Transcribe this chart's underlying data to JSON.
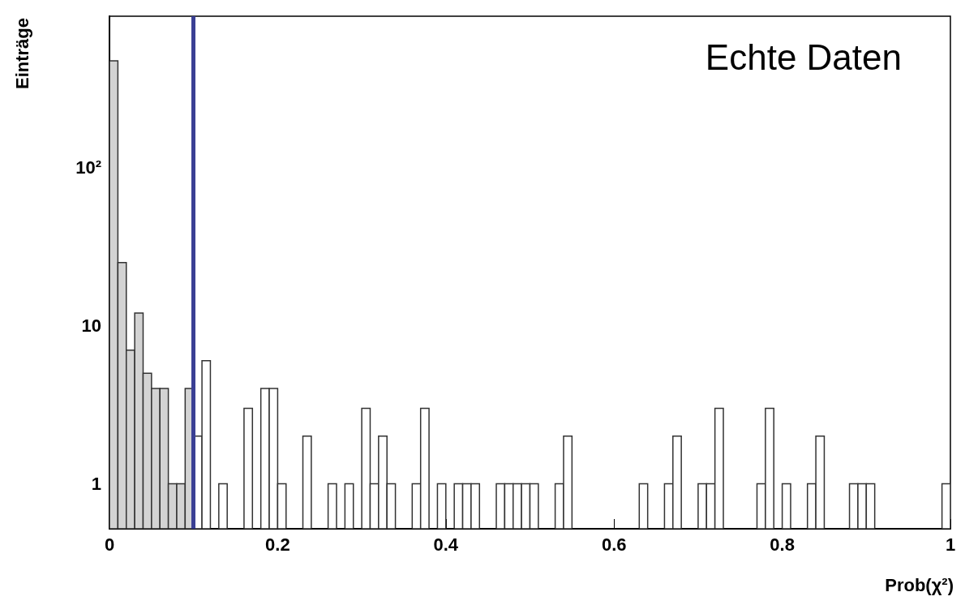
{
  "chart_data": {
    "type": "histogram",
    "xlabel": "Prob(χ²)",
    "ylabel": "Einträge",
    "annotations": [
      "Echte Daten"
    ],
    "bins": [
      0,
      0.01,
      0.02,
      0.03,
      0.04,
      0.05,
      0.06,
      0.07,
      0.08,
      0.09,
      0.1,
      0.11,
      0.12,
      0.13,
      0.14,
      0.15,
      0.16,
      0.17,
      0.18,
      0.19,
      0.2,
      0.21,
      0.22,
      0.23,
      0.24,
      0.25,
      0.26,
      0.27,
      0.28,
      0.29,
      0.3,
      0.31,
      0.32,
      0.33,
      0.34,
      0.35,
      0.36,
      0.37,
      0.38,
      0.39,
      0.4,
      0.41,
      0.42,
      0.43,
      0.44,
      0.45,
      0.46,
      0.47,
      0.48,
      0.49,
      0.5,
      0.51,
      0.52,
      0.53,
      0.54,
      0.55,
      0.56,
      0.57,
      0.58,
      0.59,
      0.6,
      0.61,
      0.62,
      0.63,
      0.64,
      0.65,
      0.66,
      0.67,
      0.68,
      0.69,
      0.7,
      0.71,
      0.72,
      0.73,
      0.74,
      0.75,
      0.76,
      0.77,
      0.78,
      0.79,
      0.8,
      0.81,
      0.82,
      0.83,
      0.84,
      0.85,
      0.86,
      0.87,
      0.88,
      0.89,
      0.9,
      0.91,
      0.92,
      0.93,
      0.94,
      0.95,
      0.96,
      0.97,
      0.98,
      0.99,
      1
    ],
    "values": [
      470,
      25,
      7,
      12,
      5,
      4,
      4,
      1,
      1,
      4,
      2,
      6,
      null,
      1,
      null,
      null,
      3,
      null,
      4,
      4,
      1,
      null,
      null,
      2,
      null,
      null,
      1,
      null,
      1,
      null,
      3,
      1,
      2,
      1,
      null,
      null,
      1,
      3,
      null,
      1,
      null,
      1,
      1,
      1,
      null,
      null,
      1,
      1,
      1,
      1,
      1,
      null,
      null,
      1,
      2,
      null,
      null,
      null,
      null,
      null,
      null,
      null,
      null,
      1,
      null,
      null,
      1,
      2,
      null,
      null,
      1,
      1,
      3,
      null,
      null,
      null,
      null,
      1,
      3,
      null,
      1,
      null,
      null,
      1,
      2,
      null,
      null,
      null,
      1,
      1,
      1,
      null,
      null,
      null,
      null,
      null,
      null,
      null,
      null,
      1
    ],
    "colors": [
      "#d3d3d3",
      "#d3d3d3",
      "#d3d3d3",
      "#d3d3d3",
      "#d3d3d3",
      "#d3d3d3",
      "#d3d3d3",
      "#d3d3d3",
      "#d3d3d3",
      "#d3d3d3",
      "#ffffff",
      "#ffffff",
      null,
      "#ffffff",
      null,
      null,
      "#ffffff",
      null,
      "#ffffff",
      "#ffffff",
      "#ffffff",
      null,
      null,
      "#ffffff",
      null,
      null,
      "#ffffff",
      null,
      "#ffffff",
      null,
      "#ffffff",
      "#ffffff",
      "#ffffff",
      "#ffffff",
      null,
      null,
      "#ffffff",
      "#ffffff",
      null,
      "#ffffff",
      null,
      "#ffffff",
      "#ffffff",
      "#ffffff",
      null,
      null,
      "#ffffff",
      "#ffffff",
      "#ffffff",
      "#ffffff",
      "#ffffff",
      null,
      null,
      "#ffffff",
      "#ffffff",
      null,
      null,
      null,
      null,
      null,
      null,
      null,
      null,
      "#ffffff",
      null,
      null,
      "#ffffff",
      "#ffffff",
      null,
      null,
      "#ffffff",
      "#ffffff",
      "#ffffff",
      null,
      null,
      null,
      null,
      "#ffffff",
      "#ffffff",
      null,
      "#ffffff",
      null,
      null,
      "#ffffff",
      "#ffffff",
      null,
      null,
      null,
      "#ffffff",
      "#ffffff",
      "#ffffff",
      null,
      null,
      null,
      null,
      null,
      null,
      null,
      null,
      "#ffffff"
    ],
    "xlim": [
      0,
      1
    ],
    "xticks": [
      0,
      0.2,
      0.4,
      0.6,
      0.8,
      1
    ],
    "ylim": [
      0.52,
      900
    ],
    "yticks": [
      1,
      10,
      {
        "value": 100,
        "label": "10²"
      }
    ],
    "log": "y",
    "grid": false,
    "ref_lines": [
      {
        "axis": "x",
        "value": 0.1,
        "color": "#3a3f94"
      }
    ]
  }
}
